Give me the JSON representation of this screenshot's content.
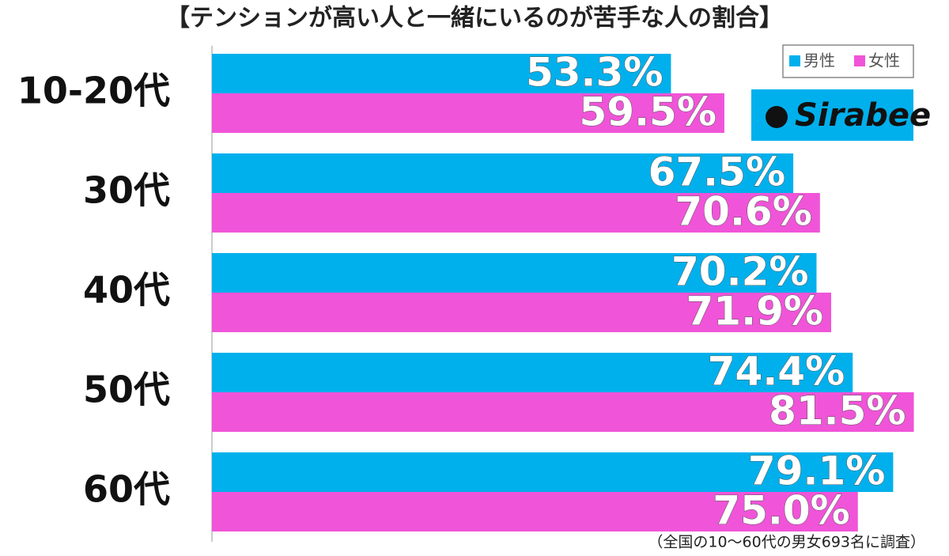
{
  "chart_data": {
    "type": "hbar",
    "title": "【テンションが高い人と一緒にいるのが苦手な人の割合】",
    "categories": [
      "10-20代",
      "30代",
      "40代",
      "50代",
      "60代"
    ],
    "series": [
      {
        "name": "男性",
        "color": "#00b0ec",
        "values": [
          53.3,
          67.5,
          70.2,
          74.4,
          79.1
        ],
        "value_labels": [
          "53.3%",
          "67.5%",
          "70.2%",
          "74.4%",
          "79.1%"
        ]
      },
      {
        "name": "女性",
        "color": "#f054d8",
        "values": [
          59.5,
          70.6,
          71.9,
          81.5,
          75.0
        ],
        "value_labels": [
          "59.5%",
          "70.6%",
          "71.9%",
          "81.5%",
          "75.0%"
        ]
      }
    ],
    "xlim": [
      0,
      100
    ],
    "legend": "top-right",
    "note": "（全国の10〜60代の男女693名に調査）"
  },
  "logo": "Sirabee"
}
